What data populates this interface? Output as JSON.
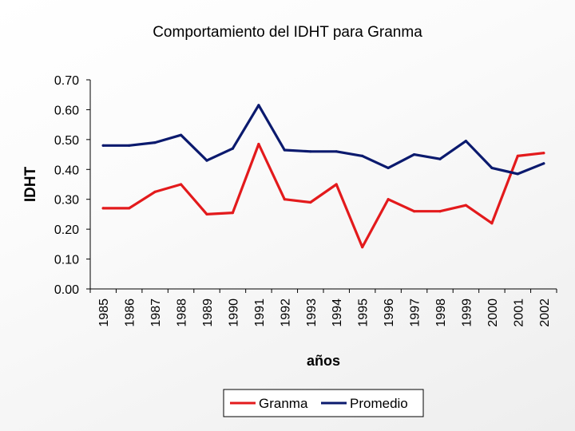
{
  "chart_data": {
    "type": "line",
    "title": "Comportamiento del IDHT para Granma",
    "xlabel": "años",
    "ylabel": "IDHT",
    "categories": [
      "1985",
      "1986",
      "1987",
      "1988",
      "1989",
      "1990",
      "1991",
      "1992",
      "1993",
      "1994",
      "1995",
      "1996",
      "1997",
      "1998",
      "1999",
      "2000",
      "2001",
      "2002"
    ],
    "ylim": [
      0,
      0.7
    ],
    "yticks": [
      "0.00",
      "0.10",
      "0.20",
      "0.30",
      "0.40",
      "0.50",
      "0.60",
      "0.70"
    ],
    "grid": false,
    "legend_position": "bottom",
    "series": [
      {
        "name": "Granma",
        "color": "#e31a1c",
        "values": [
          0.27,
          0.27,
          0.325,
          0.35,
          0.25,
          0.255,
          0.485,
          0.3,
          0.29,
          0.35,
          0.14,
          0.3,
          0.26,
          0.26,
          0.28,
          0.22,
          0.445,
          0.455
        ]
      },
      {
        "name": "Promedio",
        "color": "#0b1a6e",
        "values": [
          0.48,
          0.48,
          0.49,
          0.515,
          0.43,
          0.47,
          0.615,
          0.465,
          0.46,
          0.46,
          0.445,
          0.405,
          0.45,
          0.435,
          0.495,
          0.405,
          0.385,
          0.42
        ]
      }
    ]
  }
}
